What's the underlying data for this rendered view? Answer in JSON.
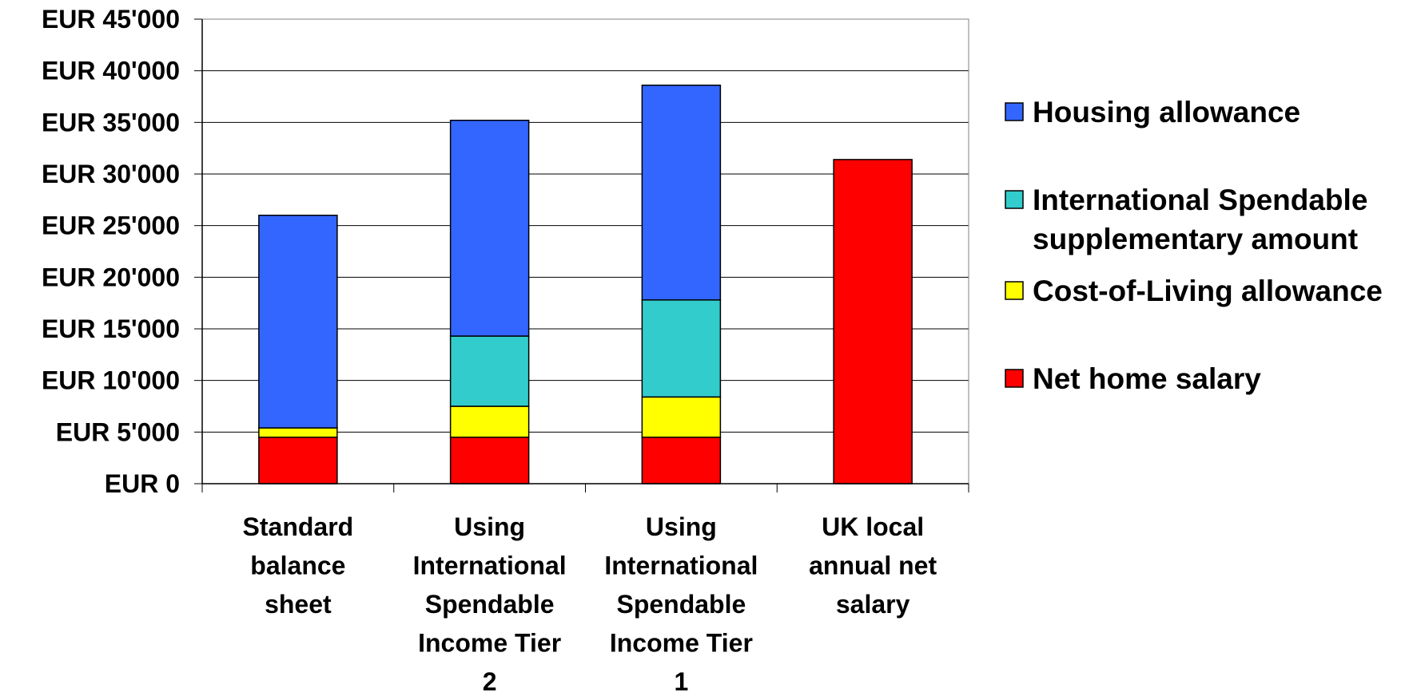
{
  "chart_data": {
    "type": "bar",
    "stacked": true,
    "categories": [
      [
        "Standard",
        "balance",
        "sheet"
      ],
      [
        "Using",
        "International",
        "Spendable",
        "Income Tier",
        "2"
      ],
      [
        "Using",
        "International",
        "Spendable",
        "Income Tier",
        "1"
      ],
      [
        "UK local",
        "annual net",
        "salary"
      ]
    ],
    "series": [
      {
        "name": "Net home salary",
        "color": "#ff0000",
        "values": [
          4500,
          4500,
          4500,
          31400
        ]
      },
      {
        "name": "Cost-of-Living allowance",
        "color": "#ffff00",
        "values": [
          900,
          3000,
          3900,
          0
        ]
      },
      {
        "name": "International Spendable supplementary amount",
        "color": "#33cccc",
        "values": [
          0,
          6800,
          9400,
          0
        ]
      },
      {
        "name": "Housing allowance",
        "color": "#3366ff",
        "values": [
          20600,
          20900,
          20800,
          0
        ]
      }
    ],
    "legend_order": [
      3,
      2,
      1,
      0
    ],
    "legend_lines": [
      [
        "Housing allowance"
      ],
      [
        "International Spendable",
        "supplementary amount"
      ],
      [
        "Cost-of-Living allowance"
      ],
      [
        "Net home salary"
      ]
    ],
    "y_ticks": [
      "EUR 0",
      "EUR 5'000",
      "EUR 10'000",
      "EUR 15'000",
      "EUR 20'000",
      "EUR 25'000",
      "EUR 30'000",
      "EUR 35'000",
      "EUR 40'000",
      "EUR 45'000"
    ],
    "ylim": [
      0,
      45000
    ],
    "y_step": 5000,
    "grid": true,
    "legend_position": "right",
    "title": "",
    "xlabel": "",
    "ylabel": ""
  }
}
